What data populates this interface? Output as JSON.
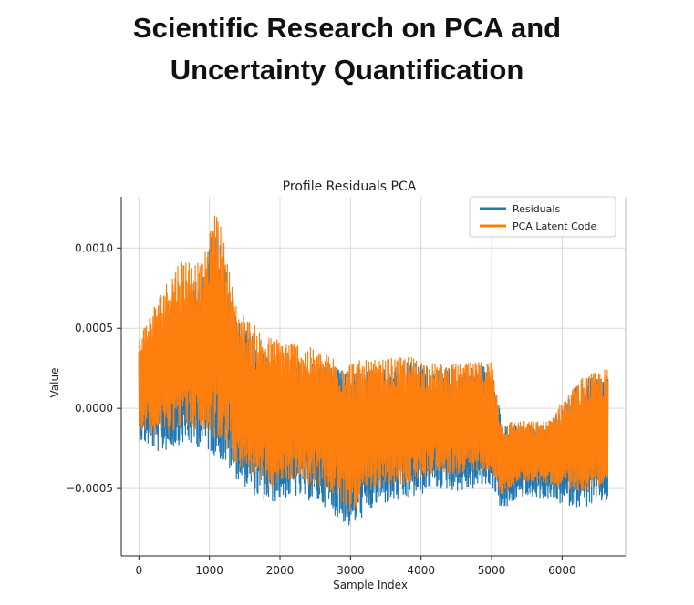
{
  "page": {
    "title_line1": "Scientific Research on PCA and",
    "title_line2": "Uncertainty Quantification"
  },
  "colors": {
    "residuals": "#1f77b4",
    "pca_latent": "#ff7f0e",
    "grid": "#d9d9d9",
    "axis": "#222222"
  },
  "chart_data": {
    "type": "line",
    "title": "Profile Residuals PCA",
    "xlabel": "Sample Index",
    "ylabel": "Value",
    "xlim": [
      -250,
      6900
    ],
    "ylim": [
      -0.00092,
      0.00132
    ],
    "xticks": [
      0,
      1000,
      2000,
      3000,
      4000,
      5000,
      6000
    ],
    "xtick_labels": [
      "0",
      "1000",
      "2000",
      "3000",
      "4000",
      "5000",
      "6000"
    ],
    "yticks": [
      -0.0005,
      0.0,
      0.0005,
      0.001
    ],
    "ytick_labels": [
      "−0.0005",
      "0.0000",
      "0.0005",
      "0.0010"
    ],
    "grid": true,
    "legend_position": "top-right",
    "series": [
      {
        "name": "Residuals",
        "envelope_x": [
          0,
          300,
          600,
          900,
          1100,
          1400,
          1800,
          2200,
          2600,
          3000,
          3400,
          3800,
          4200,
          4600,
          5000,
          5150,
          5400,
          5800,
          6000,
          6300,
          6650
        ],
        "envelope_low": [
          -0.0002,
          -0.00028,
          -0.00022,
          -0.00025,
          -0.0003,
          -0.00045,
          -0.0006,
          -0.00055,
          -0.0006,
          -0.00075,
          -0.0006,
          -0.00058,
          -0.0005,
          -0.00052,
          -0.00048,
          -0.00065,
          -0.00055,
          -0.00057,
          -0.0006,
          -0.00062,
          -0.00058
        ],
        "envelope_high": [
          0.00035,
          0.00055,
          0.0007,
          0.00085,
          0.0012,
          0.00055,
          0.00035,
          0.0003,
          0.00028,
          0.00022,
          0.00025,
          0.0003,
          0.00025,
          0.00025,
          0.00028,
          -0.0001,
          -0.0001,
          -0.0001,
          3e-05,
          0.00018,
          0.00022
        ]
      },
      {
        "name": "PCA Latent Code",
        "envelope_x": [
          0,
          300,
          600,
          900,
          1100,
          1400,
          1800,
          2200,
          2600,
          3000,
          3400,
          3800,
          4200,
          4600,
          5000,
          5150,
          5400,
          5800,
          6000,
          6300,
          6650
        ],
        "envelope_low": [
          -0.00012,
          -0.00018,
          -0.00012,
          -0.00015,
          -0.0002,
          -0.00035,
          -0.0005,
          -0.00045,
          -0.0005,
          -0.00065,
          -0.0005,
          -0.00048,
          -0.0004,
          -0.00042,
          -0.00038,
          -0.00055,
          -0.00045,
          -0.00047,
          -0.0005,
          -0.00052,
          -0.00048
        ],
        "envelope_high": [
          0.00045,
          0.00072,
          0.00095,
          0.0009,
          0.00127,
          0.00062,
          0.00045,
          0.00042,
          0.00035,
          0.0003,
          0.0003,
          0.00033,
          0.00028,
          0.00028,
          0.0003,
          -8e-05,
          -8e-05,
          -8e-05,
          5e-05,
          0.0002,
          0.00025
        ]
      }
    ]
  }
}
